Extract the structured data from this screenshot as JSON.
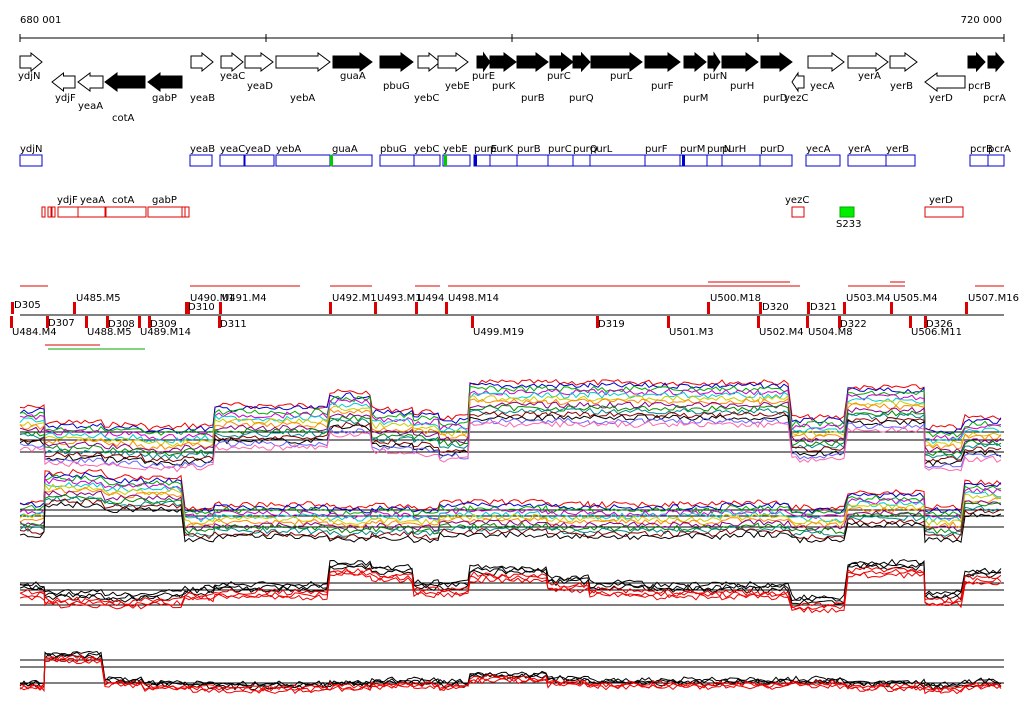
{
  "scale": {
    "start": "680 001",
    "end": "720 000"
  },
  "genes": [
    "ydjN",
    "ydjF",
    "yeaA",
    "cotA",
    "gabP",
    "yeaB",
    "yeaC",
    "yeaD",
    "yebA",
    "guaA",
    "pbuG",
    "yebC",
    "yebE",
    "purE",
    "purK",
    "purB",
    "purC",
    "purQ",
    "purL",
    "purF",
    "purM",
    "purN",
    "purH",
    "purD",
    "yezC",
    "yecA",
    "yerA",
    "yerB",
    "yerD",
    "pcrB",
    "pcrA"
  ],
  "annotations": [
    "ydjN",
    "yeaB",
    "yeaC",
    "yeaD",
    "yebA",
    "guaA",
    "pbuG",
    "yebC",
    "yebE",
    "purE",
    "purK",
    "purB",
    "purC",
    "purQ",
    "purL",
    "purF",
    "purM",
    "purN",
    "purH",
    "purD",
    "yecA",
    "yerA",
    "yerB",
    "pcrB",
    "pcrA"
  ],
  "features": [
    "ydjF",
    "yeaA",
    "cotA",
    "gabP",
    "yezC",
    "S233",
    "yerD"
  ],
  "segments": [
    "D305",
    "U485.M5",
    "U490.M1",
    "U491.M4",
    "D310",
    "U492.M1",
    "U493.M1",
    "U494",
    "U498.M14",
    "U500.M18",
    "D320",
    "D321",
    "U503.M4",
    "U505.M4",
    "U507.M16",
    "U484.M4",
    "D307",
    "U488.M5",
    "D308",
    "U489.M14",
    "D309",
    "D311",
    "U499.M19",
    "D319",
    "U501.M3",
    "U502.M4",
    "U504.M8",
    "D322",
    "D326",
    "U506.M11"
  ]
}
